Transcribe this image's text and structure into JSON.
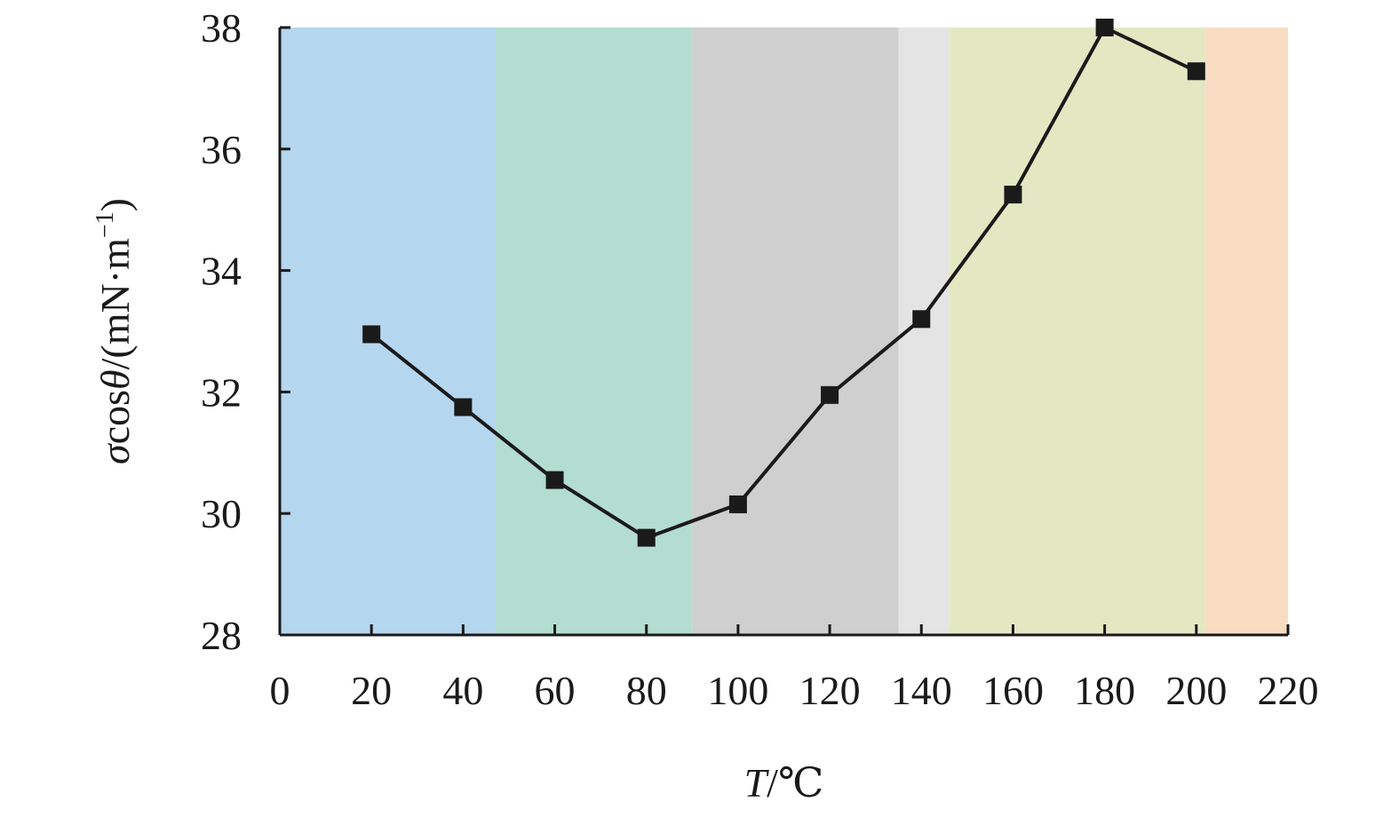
{
  "chart_data": {
    "type": "line",
    "title": "",
    "xlabel": {
      "var": "T",
      "sep": "/",
      "unit": "℃"
    },
    "ylabel": {
      "var1": "σ",
      "mid": "cos",
      "var2": "θ",
      "unit": "/(mN·m",
      "exp": "−1",
      "close": ")"
    },
    "xlim": [
      0,
      220
    ],
    "ylim": [
      28,
      38
    ],
    "x_ticks": [
      0,
      20,
      40,
      60,
      80,
      100,
      120,
      140,
      160,
      180,
      200,
      220
    ],
    "y_ticks": [
      28,
      30,
      32,
      34,
      36,
      38
    ],
    "grid": false,
    "legend": "none",
    "background_bands": [
      {
        "from": 0,
        "to": 47,
        "color": "#b5d6ef"
      },
      {
        "from": 47,
        "to": 90,
        "color": "#b3ddd0"
      },
      {
        "from": 90,
        "to": 135,
        "color": "#cfcfcf"
      },
      {
        "from": 135,
        "to": 146,
        "color": "#e4e4e4"
      },
      {
        "from": 146,
        "to": 202,
        "color": "#e3e8c3"
      },
      {
        "from": 202,
        "to": 220,
        "color": "#f8dcc1"
      }
    ],
    "series": [
      {
        "marker": "square",
        "color": "#1a1a1a",
        "x": [
          20,
          40,
          60,
          80,
          100,
          120,
          140,
          160,
          180,
          200
        ],
        "y": [
          32.95,
          31.75,
          30.55,
          29.6,
          30.15,
          31.95,
          33.2,
          35.25,
          38.0,
          37.28
        ]
      }
    ]
  }
}
